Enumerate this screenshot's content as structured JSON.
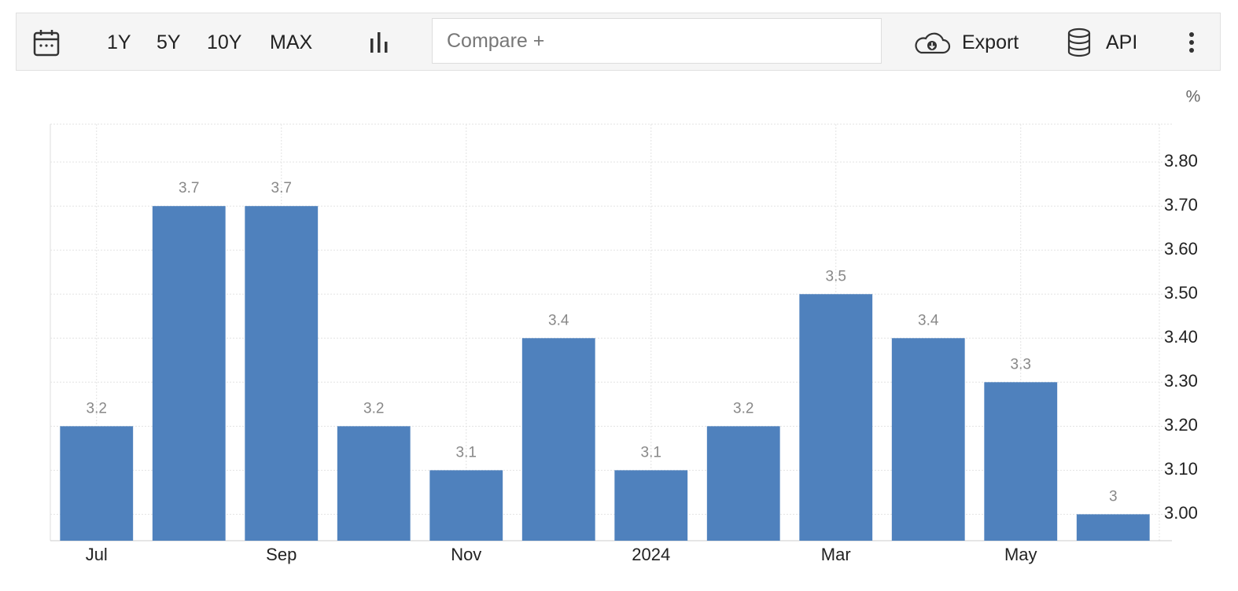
{
  "toolbar": {
    "ranges": [
      "1Y",
      "5Y",
      "10Y",
      "MAX"
    ],
    "compare_placeholder": "Compare +",
    "export": "Export",
    "api": "API"
  },
  "chart_data": {
    "type": "bar",
    "unit": "%",
    "categories": [
      "Jul",
      null,
      "Sep",
      null,
      "Nov",
      null,
      "2024",
      null,
      "Mar",
      null,
      "May",
      null
    ],
    "values": [
      3.2,
      3.7,
      3.7,
      3.2,
      3.1,
      3.4,
      3.1,
      3.2,
      3.5,
      3.4,
      3.3,
      3
    ],
    "color": "#4f81bd",
    "ylim": [
      2.94,
      3.886
    ],
    "yticks": [
      {
        "value": 3,
        "label": "3.00"
      },
      {
        "value": 3.1,
        "label": "3.10"
      },
      {
        "value": 3.2,
        "label": "3.20"
      },
      {
        "value": 3.3,
        "label": "3.30"
      },
      {
        "value": 3.4,
        "label": "3.40"
      },
      {
        "value": 3.5,
        "label": "3.50"
      },
      {
        "value": 3.6,
        "label": "3.60"
      },
      {
        "value": 3.7,
        "label": "3.70"
      },
      {
        "value": 3.8,
        "label": "3.80"
      }
    ],
    "grid": true
  }
}
